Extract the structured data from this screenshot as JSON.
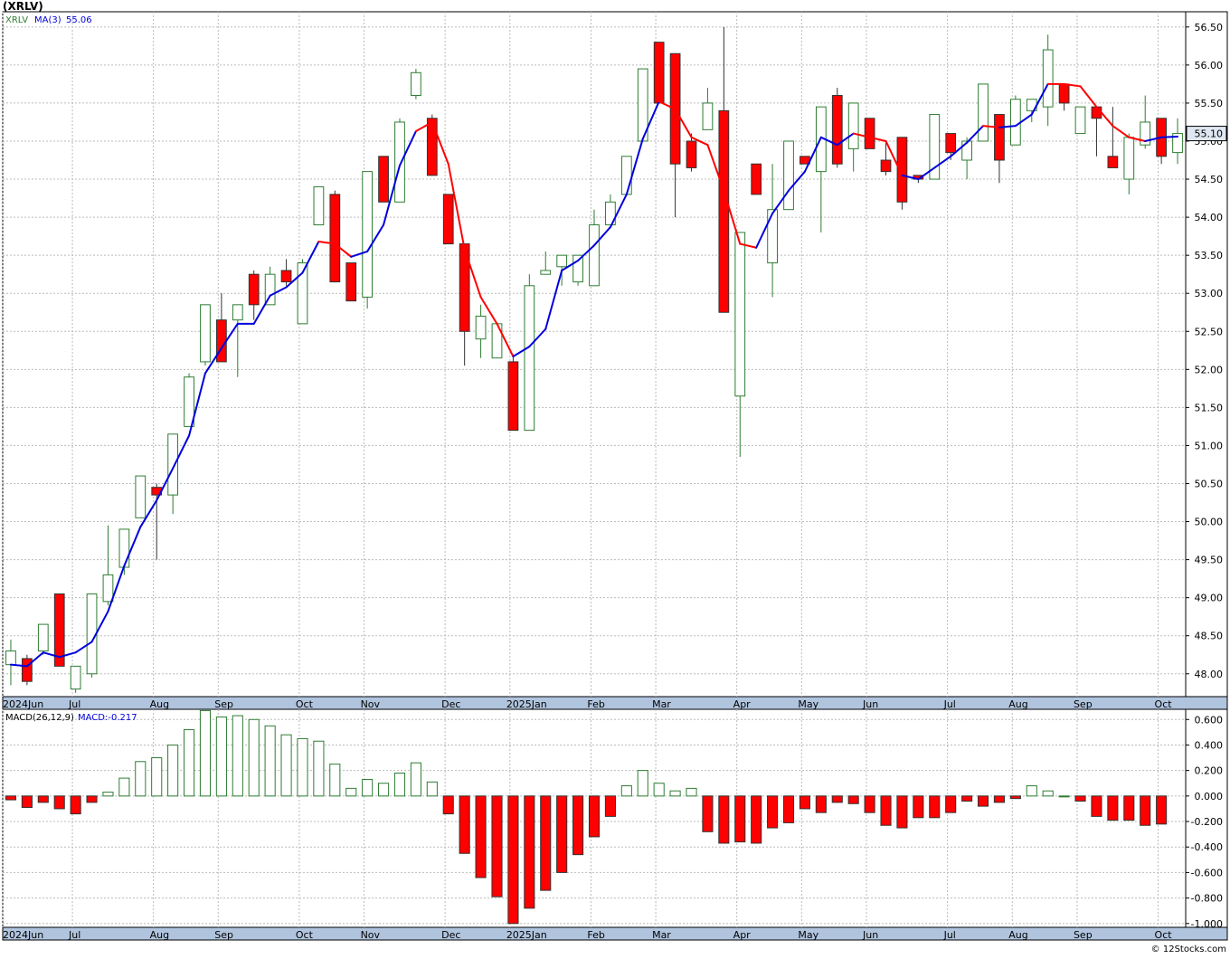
{
  "title": "(XRLV)",
  "credit": "© 12Stocks.com",
  "colors": {
    "up": "#2e7d32",
    "down": "#ff0000",
    "ma_up": "#0000dd",
    "ma_down": "#ff0000",
    "grid": "#bbbbbb",
    "axis_band": "#b0c4de",
    "last_price_box": "#dfe8f2"
  },
  "chart_data": [
    {
      "type": "candlestick",
      "symbol": "XRLV",
      "ma_label": "MA(3)",
      "ma_value": "55.06",
      "last_price": "55.10",
      "ylim": [
        47.7,
        56.7
      ],
      "y_ticks": [
        "48.00",
        "48.50",
        "49.00",
        "49.50",
        "50.00",
        "50.50",
        "51.00",
        "51.50",
        "52.00",
        "52.50",
        "53.00",
        "53.50",
        "54.00",
        "54.50",
        "55.00",
        "55.50",
        "56.00",
        "56.50"
      ],
      "x_labels": [
        "2024Jun",
        "Jul",
        "Aug",
        "Sep",
        "Oct",
        "Nov",
        "Dec",
        "2025Jan",
        "Feb",
        "Mar",
        "Apr",
        "May",
        "Jun",
        "Jul",
        "Aug",
        "Sep",
        "Oct"
      ],
      "x_label_week": [
        0,
        4,
        9,
        13,
        18,
        22,
        27,
        31,
        36,
        40,
        45,
        49,
        53,
        58,
        62,
        66,
        71
      ],
      "candles": [
        {
          "o": 48.12,
          "h": 48.45,
          "l": 47.85,
          "c": 48.3
        },
        {
          "o": 48.2,
          "h": 48.25,
          "l": 47.85,
          "c": 47.9
        },
        {
          "o": 48.3,
          "h": 48.65,
          "l": 48.25,
          "c": 48.65
        },
        {
          "o": 49.05,
          "h": 49.05,
          "l": 48.1,
          "c": 48.1
        },
        {
          "o": 47.8,
          "h": 48.1,
          "l": 47.75,
          "c": 48.1
        },
        {
          "o": 48.0,
          "h": 49.05,
          "l": 47.95,
          "c": 49.05
        },
        {
          "o": 48.95,
          "h": 49.95,
          "l": 48.9,
          "c": 49.3
        },
        {
          "o": 49.4,
          "h": 49.9,
          "l": 49.3,
          "c": 49.9
        },
        {
          "o": 50.05,
          "h": 50.6,
          "l": 50.05,
          "c": 50.6
        },
        {
          "o": 50.45,
          "h": 50.5,
          "l": 49.5,
          "c": 50.35
        },
        {
          "o": 50.35,
          "h": 51.15,
          "l": 50.1,
          "c": 51.15
        },
        {
          "o": 51.25,
          "h": 51.95,
          "l": 51.25,
          "c": 51.9
        },
        {
          "o": 52.1,
          "h": 52.85,
          "l": 52.05,
          "c": 52.85
        },
        {
          "o": 52.65,
          "h": 53.0,
          "l": 52.1,
          "c": 52.1
        },
        {
          "o": 52.65,
          "h": 52.85,
          "l": 51.9,
          "c": 52.85
        },
        {
          "o": 53.25,
          "h": 53.3,
          "l": 52.65,
          "c": 52.85
        },
        {
          "o": 52.85,
          "h": 53.35,
          "l": 52.85,
          "c": 53.25
        },
        {
          "o": 53.3,
          "h": 53.45,
          "l": 53.1,
          "c": 53.15
        },
        {
          "o": 52.6,
          "h": 53.45,
          "l": 52.6,
          "c": 53.4
        },
        {
          "o": 53.9,
          "h": 54.4,
          "l": 53.9,
          "c": 54.4
        },
        {
          "o": 54.3,
          "h": 54.35,
          "l": 53.15,
          "c": 53.15
        },
        {
          "o": 53.4,
          "h": 53.4,
          "l": 52.9,
          "c": 52.9
        },
        {
          "o": 52.95,
          "h": 54.6,
          "l": 52.8,
          "c": 54.6
        },
        {
          "o": 54.8,
          "h": 54.8,
          "l": 54.2,
          "c": 54.2
        },
        {
          "o": 54.2,
          "h": 55.3,
          "l": 54.2,
          "c": 55.25
        },
        {
          "o": 55.6,
          "h": 55.95,
          "l": 55.55,
          "c": 55.9
        },
        {
          "o": 55.3,
          "h": 55.35,
          "l": 54.55,
          "c": 54.55
        },
        {
          "o": 54.3,
          "h": 54.3,
          "l": 53.65,
          "c": 53.65
        },
        {
          "o": 53.65,
          "h": 53.65,
          "l": 52.05,
          "c": 52.5
        },
        {
          "o": 52.4,
          "h": 52.85,
          "l": 52.15,
          "c": 52.7
        },
        {
          "o": 52.15,
          "h": 52.6,
          "l": 52.15,
          "c": 52.6
        },
        {
          "o": 52.1,
          "h": 52.2,
          "l": 51.25,
          "c": 51.2
        },
        {
          "o": 51.2,
          "h": 53.25,
          "l": 51.2,
          "c": 53.1
        },
        {
          "o": 53.25,
          "h": 53.55,
          "l": 53.25,
          "c": 53.3
        },
        {
          "o": 53.35,
          "h": 53.45,
          "l": 53.1,
          "c": 53.5
        },
        {
          "o": 53.15,
          "h": 53.5,
          "l": 53.1,
          "c": 53.5
        },
        {
          "o": 53.1,
          "h": 54.1,
          "l": 53.1,
          "c": 53.9
        },
        {
          "o": 53.9,
          "h": 54.3,
          "l": 53.9,
          "c": 54.2
        },
        {
          "o": 54.3,
          "h": 54.8,
          "l": 54.3,
          "c": 54.8
        },
        {
          "o": 55.0,
          "h": 55.95,
          "l": 55.0,
          "c": 55.95
        },
        {
          "o": 56.3,
          "h": 56.3,
          "l": 55.5,
          "c": 55.5
        },
        {
          "o": 56.15,
          "h": 56.15,
          "l": 54.0,
          "c": 54.7
        },
        {
          "o": 55.0,
          "h": 55.1,
          "l": 54.6,
          "c": 54.65
        },
        {
          "o": 55.15,
          "h": 55.7,
          "l": 55.15,
          "c": 55.5
        },
        {
          "o": 55.4,
          "h": 56.5,
          "l": 52.75,
          "c": 52.75
        },
        {
          "o": 51.65,
          "h": 53.8,
          "l": 50.85,
          "c": 53.8
        },
        {
          "o": 54.7,
          "h": 54.7,
          "l": 54.3,
          "c": 54.3
        },
        {
          "o": 53.4,
          "h": 54.7,
          "l": 52.95,
          "c": 54.1
        },
        {
          "o": 54.1,
          "h": 55.0,
          "l": 54.1,
          "c": 55.0
        },
        {
          "o": 54.8,
          "h": 54.8,
          "l": 54.75,
          "c": 54.7
        },
        {
          "o": 54.6,
          "h": 55.45,
          "l": 53.8,
          "c": 55.45
        },
        {
          "o": 55.6,
          "h": 55.7,
          "l": 54.65,
          "c": 54.7
        },
        {
          "o": 54.9,
          "h": 55.5,
          "l": 54.6,
          "c": 55.5
        },
        {
          "o": 55.3,
          "h": 55.3,
          "l": 54.9,
          "c": 54.9
        },
        {
          "o": 54.75,
          "h": 55.0,
          "l": 54.55,
          "c": 54.6
        },
        {
          "o": 55.05,
          "h": 55.05,
          "l": 54.1,
          "c": 54.2
        },
        {
          "o": 54.55,
          "h": 54.55,
          "l": 54.45,
          "c": 54.5
        },
        {
          "o": 54.5,
          "h": 55.35,
          "l": 54.5,
          "c": 55.35
        },
        {
          "o": 55.1,
          "h": 55.1,
          "l": 54.75,
          "c": 54.85
        },
        {
          "o": 54.75,
          "h": 55.05,
          "l": 54.5,
          "c": 55.0
        },
        {
          "o": 55.0,
          "h": 55.75,
          "l": 55.0,
          "c": 55.75
        },
        {
          "o": 55.35,
          "h": 55.35,
          "l": 54.45,
          "c": 54.75
        },
        {
          "o": 54.95,
          "h": 55.6,
          "l": 54.95,
          "c": 55.55
        },
        {
          "o": 55.4,
          "h": 55.55,
          "l": 55.25,
          "c": 55.55
        },
        {
          "o": 55.45,
          "h": 56.4,
          "l": 55.2,
          "c": 56.2
        },
        {
          "o": 55.75,
          "h": 55.75,
          "l": 55.4,
          "c": 55.5
        },
        {
          "o": 55.1,
          "h": 55.45,
          "l": 55.1,
          "c": 55.45
        },
        {
          "o": 55.45,
          "h": 55.45,
          "l": 54.8,
          "c": 55.3
        },
        {
          "o": 54.8,
          "h": 55.45,
          "l": 54.65,
          "c": 54.65
        },
        {
          "o": 54.5,
          "h": 55.1,
          "l": 54.3,
          "c": 55.05
        },
        {
          "o": 54.95,
          "h": 55.6,
          "l": 54.9,
          "c": 55.25
        },
        {
          "o": 55.3,
          "h": 55.3,
          "l": 54.7,
          "c": 54.8
        },
        {
          "o": 54.85,
          "h": 55.3,
          "l": 54.7,
          "c": 55.1
        }
      ],
      "ma": [
        48.12,
        48.1,
        48.28,
        48.22,
        48.28,
        48.42,
        48.82,
        49.42,
        49.93,
        50.28,
        50.7,
        51.13,
        51.95,
        52.28,
        52.6,
        52.6,
        52.97,
        53.08,
        53.27,
        53.68,
        53.65,
        53.48,
        53.55,
        53.9,
        54.68,
        55.13,
        55.25,
        54.7,
        53.58,
        52.95,
        52.6,
        52.17,
        52.3,
        52.53,
        53.3,
        53.43,
        53.63,
        53.87,
        54.3,
        55.03,
        55.52,
        55.42,
        55.05,
        54.95,
        54.35,
        53.65,
        53.6,
        54.05,
        54.35,
        54.6,
        55.05,
        54.95,
        55.1,
        55.05,
        55.0,
        54.55,
        54.5,
        54.65,
        54.8,
        54.98,
        55.2,
        55.18,
        55.2,
        55.35,
        55.75,
        55.75,
        55.72,
        55.45,
        55.2,
        55.05,
        55.0,
        55.05,
        55.06
      ],
      "ma_trend": [
        "up",
        "up",
        "up",
        "up",
        "up",
        "up",
        "up",
        "up",
        "up",
        "up",
        "up",
        "up",
        "up",
        "up",
        "up",
        "up",
        "up",
        "up",
        "up",
        "up",
        "down",
        "down",
        "up",
        "up",
        "up",
        "up",
        "down",
        "down",
        "down",
        "down",
        "down",
        "down",
        "up",
        "up",
        "up",
        "up",
        "up",
        "up",
        "up",
        "up",
        "up",
        "down",
        "down",
        "down",
        "down",
        "down",
        "down",
        "up",
        "up",
        "up",
        "up",
        "up",
        "up",
        "down",
        "down",
        "down",
        "up",
        "up",
        "up",
        "up",
        "up",
        "down",
        "up",
        "up",
        "up",
        "down",
        "down",
        "down",
        "down",
        "down",
        "down",
        "up",
        "up"
      ]
    },
    {
      "type": "bar",
      "label": "MACD(26,12,9)",
      "value_label": "MACD:-0.217",
      "ylim": [
        -1.03,
        0.68
      ],
      "y_ticks": [
        "0.600",
        "0.400",
        "0.200",
        "0.000",
        "-0.200",
        "-0.400",
        "-0.600",
        "-0.800",
        "-1.000"
      ],
      "x_labels": [
        "2024Jun",
        "Jul",
        "Aug",
        "Sep",
        "Oct",
        "Nov",
        "Dec",
        "2025Jan",
        "Feb",
        "Mar",
        "Apr",
        "May",
        "Jun",
        "Jul",
        "Aug",
        "Sep",
        "Oct"
      ],
      "values": [
        -0.03,
        -0.09,
        -0.05,
        -0.1,
        -0.14,
        -0.05,
        0.03,
        0.14,
        0.27,
        0.3,
        0.4,
        0.52,
        0.67,
        0.62,
        0.63,
        0.6,
        0.55,
        0.48,
        0.45,
        0.43,
        0.25,
        0.06,
        0.13,
        0.1,
        0.18,
        0.26,
        0.11,
        -0.14,
        -0.45,
        -0.64,
        -0.79,
        -1.0,
        -0.88,
        -0.74,
        -0.6,
        -0.46,
        -0.32,
        -0.16,
        0.08,
        0.2,
        0.1,
        0.04,
        0.06,
        -0.28,
        -0.37,
        -0.36,
        -0.37,
        -0.25,
        -0.21,
        -0.1,
        -0.13,
        -0.05,
        -0.06,
        -0.13,
        -0.23,
        -0.25,
        -0.17,
        -0.17,
        -0.13,
        -0.04,
        -0.08,
        -0.05,
        -0.02,
        0.08,
        0.04,
        0.0,
        -0.04,
        -0.16,
        -0.19,
        -0.19,
        -0.23,
        -0.22
      ]
    }
  ]
}
